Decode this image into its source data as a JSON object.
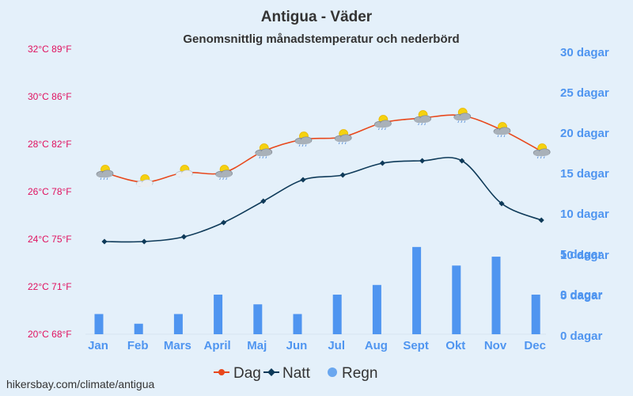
{
  "title": "Antigua - Väder",
  "subtitle": "Genomsnittlig månadstemperatur och nederbörd",
  "source": "hikersbay.com/climate/antigua",
  "colors": {
    "background": "#e4f0fa",
    "day": "#e8481c",
    "night": "#0e3a59",
    "rain": "#4f95f0",
    "left_axis": "#e0115f",
    "right_axis": "#4f95f0"
  },
  "chart_data": {
    "type": "line",
    "categories": [
      "Jan",
      "Feb",
      "Mars",
      "April",
      "Maj",
      "Jun",
      "Jul",
      "Aug",
      "Sept",
      "Okt",
      "Nov",
      "Dec"
    ],
    "series": [
      {
        "name": "Dag",
        "kind": "line",
        "axis": "temperature",
        "values": [
          26.8,
          26.4,
          26.8,
          26.8,
          27.7,
          28.2,
          28.3,
          28.9,
          29.1,
          29.2,
          28.6,
          27.7
        ],
        "icons": [
          "sun-cloud-rain",
          "sun-cloud",
          "sun-cloud",
          "sun-cloud-rain",
          "sun-cloud-rain",
          "sun-cloud-rain",
          "sun-cloud-rain",
          "sun-cloud-rain",
          "sun-cloud-rain",
          "sun-cloud-rain",
          "sun-cloud-rain",
          "sun-cloud-rain"
        ]
      },
      {
        "name": "Natt",
        "kind": "line",
        "axis": "temperature",
        "values": [
          23.9,
          23.9,
          24.1,
          24.7,
          25.6,
          26.5,
          26.7,
          27.2,
          27.3,
          27.3,
          25.5,
          24.8
        ]
      },
      {
        "name": "Regn",
        "kind": "bar",
        "axis": "days",
        "values": [
          2.5,
          1.3,
          2.5,
          4.9,
          3.7,
          2.5,
          4.9,
          6.1,
          10.8,
          8.5,
          9.6,
          4.9
        ]
      }
    ],
    "left_axis": {
      "ylim": [
        20,
        32
      ],
      "ticks": [
        "20°C 68°F",
        "22°C 71°F",
        "24°C 75°F",
        "26°C 78°F",
        "28°C 82°F",
        "30°C 86°F",
        "32°C 89°F"
      ]
    },
    "right_axis_temp": {
      "ylim": [
        0,
        30
      ],
      "ticks": [
        "0 dagar",
        "5 dagar",
        "10 dagar",
        "15 dagar",
        "20 dagar",
        "25 dagar",
        "30 dagar"
      ]
    },
    "right_axis_rain": {
      "ylim": [
        0,
        20
      ],
      "ticks": [
        "0 dagar",
        "5 dagar",
        "10 dagar"
      ]
    },
    "grid": false,
    "legend_position": "bottom-center"
  }
}
